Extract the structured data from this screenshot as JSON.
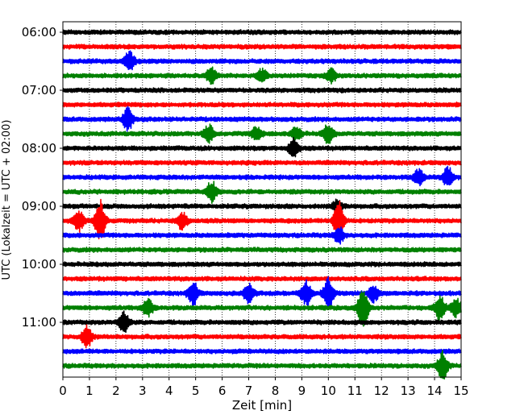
{
  "chart_data": {
    "type": "line",
    "title": "",
    "xlabel": "Zeit  [min]",
    "ylabel": "UTC (Lokalzeit = UTC + 02:00)",
    "xlim": [
      0,
      15
    ],
    "x_ticks": [
      "0",
      "1",
      "2",
      "3",
      "4",
      "5",
      "6",
      "7",
      "8",
      "9",
      "10",
      "11",
      "12",
      "13",
      "14",
      "15"
    ],
    "y_tick_labels": [
      "06:00",
      "07:00",
      "08:00",
      "09:00",
      "10:00",
      "11:00"
    ],
    "grid": "vertical-dotted",
    "colors": [
      "#000000",
      "#ff0000",
      "#0000ff",
      "#008000"
    ],
    "trace_rows": [
      {
        "start": "06:00",
        "color": "#000000"
      },
      {
        "start": "06:15",
        "color": "#ff0000"
      },
      {
        "start": "06:30",
        "color": "#0000ff"
      },
      {
        "start": "06:45",
        "color": "#008000"
      },
      {
        "start": "07:00",
        "color": "#000000"
      },
      {
        "start": "07:15",
        "color": "#ff0000"
      },
      {
        "start": "07:30",
        "color": "#0000ff"
      },
      {
        "start": "07:45",
        "color": "#008000"
      },
      {
        "start": "08:00",
        "color": "#000000"
      },
      {
        "start": "08:15",
        "color": "#ff0000"
      },
      {
        "start": "08:30",
        "color": "#0000ff"
      },
      {
        "start": "08:45",
        "color": "#008000"
      },
      {
        "start": "09:00",
        "color": "#000000"
      },
      {
        "start": "09:15",
        "color": "#ff0000"
      },
      {
        "start": "09:30",
        "color": "#0000ff"
      },
      {
        "start": "09:45",
        "color": "#008000"
      },
      {
        "start": "10:00",
        "color": "#000000"
      },
      {
        "start": "10:15",
        "color": "#ff0000"
      },
      {
        "start": "10:30",
        "color": "#0000ff"
      },
      {
        "start": "10:45",
        "color": "#008000"
      },
      {
        "start": "11:00",
        "color": "#000000"
      },
      {
        "start": "11:15",
        "color": "#ff0000"
      },
      {
        "start": "11:30",
        "color": "#0000ff"
      },
      {
        "start": "11:45",
        "color": "#008000"
      }
    ],
    "events": [
      {
        "row": 2,
        "x": 2.5,
        "amp": 0.45
      },
      {
        "row": 3,
        "x": 5.6,
        "amp": 0.35
      },
      {
        "row": 3,
        "x": 7.5,
        "amp": 0.3
      },
      {
        "row": 3,
        "x": 10.1,
        "amp": 0.3
      },
      {
        "row": 6,
        "x": 2.45,
        "amp": 0.5
      },
      {
        "row": 7,
        "x": 5.5,
        "amp": 0.4
      },
      {
        "row": 7,
        "x": 7.3,
        "amp": 0.3
      },
      {
        "row": 7,
        "x": 8.8,
        "amp": 0.3
      },
      {
        "row": 7,
        "x": 10.0,
        "amp": 0.45
      },
      {
        "row": 8,
        "x": 8.7,
        "amp": 0.45
      },
      {
        "row": 10,
        "x": 13.4,
        "amp": 0.35
      },
      {
        "row": 10,
        "x": 14.5,
        "amp": 0.45
      },
      {
        "row": 11,
        "x": 5.6,
        "amp": 0.5
      },
      {
        "row": 12,
        "x": 10.35,
        "amp": 0.3
      },
      {
        "row": 13,
        "x": 0.6,
        "amp": 0.5
      },
      {
        "row": 13,
        "x": 1.4,
        "amp": 1.0
      },
      {
        "row": 13,
        "x": 4.5,
        "amp": 0.4
      },
      {
        "row": 13,
        "x": 10.4,
        "amp": 1.0
      },
      {
        "row": 14,
        "x": 10.4,
        "amp": 0.35
      },
      {
        "row": 18,
        "x": 4.9,
        "amp": 0.55
      },
      {
        "row": 18,
        "x": 7.0,
        "amp": 0.45
      },
      {
        "row": 18,
        "x": 9.15,
        "amp": 0.6
      },
      {
        "row": 18,
        "x": 10.0,
        "amp": 0.7
      },
      {
        "row": 18,
        "x": 11.7,
        "amp": 0.4
      },
      {
        "row": 19,
        "x": 3.2,
        "amp": 0.4
      },
      {
        "row": 19,
        "x": 11.3,
        "amp": 1.0
      },
      {
        "row": 19,
        "x": 14.2,
        "amp": 0.6
      },
      {
        "row": 19,
        "x": 14.8,
        "amp": 0.45
      },
      {
        "row": 20,
        "x": 2.3,
        "amp": 0.5
      },
      {
        "row": 21,
        "x": 0.9,
        "amp": 0.5
      },
      {
        "row": 23,
        "x": 14.3,
        "amp": 0.65
      }
    ]
  }
}
